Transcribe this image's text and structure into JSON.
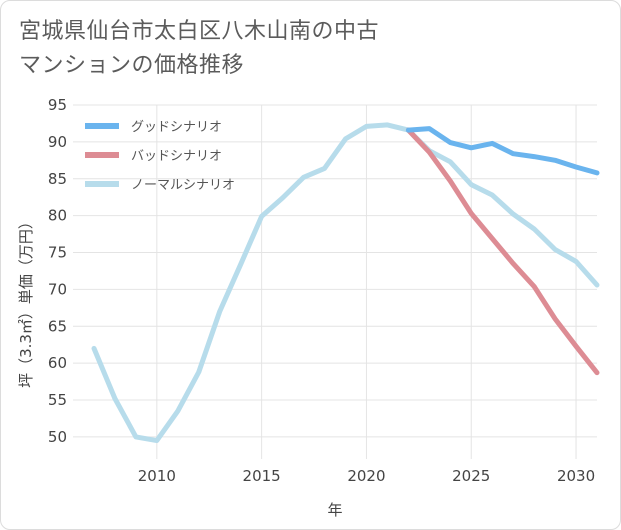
{
  "title": "宮城県仙台市太白区八木山南の中古マンションの価格推移",
  "chart_data": {
    "type": "line",
    "xlabel": "年",
    "ylabel": "坪（3.3㎡）単価（万円）",
    "xlim": [
      2006,
      2031
    ],
    "ylim": [
      47,
      95
    ],
    "xticks": [
      2010,
      2015,
      2020,
      2025,
      2030
    ],
    "yticks": [
      50,
      55,
      60,
      65,
      70,
      75,
      80,
      85,
      90,
      95
    ],
    "grid": true,
    "legend_position": "top-left",
    "series": [
      {
        "name": "グッドシナリオ",
        "color": "#6ab4ee",
        "points": [
          [
            2022,
            91.6
          ],
          [
            2023,
            91.8
          ],
          [
            2024,
            89.9
          ],
          [
            2025,
            89.2
          ],
          [
            2026,
            89.8
          ],
          [
            2027,
            88.4
          ],
          [
            2028,
            88.0
          ],
          [
            2029,
            87.5
          ],
          [
            2030,
            86.6
          ],
          [
            2031,
            85.8
          ]
        ]
      },
      {
        "name": "バッドシナリオ",
        "color": "#dd8c94",
        "points": [
          [
            2022,
            91.6
          ],
          [
            2023,
            88.6
          ],
          [
            2024,
            84.7
          ],
          [
            2025,
            80.3
          ],
          [
            2026,
            76.9
          ],
          [
            2027,
            73.5
          ],
          [
            2028,
            70.4
          ],
          [
            2029,
            66.0
          ],
          [
            2030,
            62.3
          ],
          [
            2031,
            58.7
          ]
        ]
      },
      {
        "name": "ノーマルシナリオ",
        "color": "#b7dceb",
        "points": [
          [
            2007,
            62.0
          ],
          [
            2008,
            55.2
          ],
          [
            2009,
            50.0
          ],
          [
            2010,
            49.5
          ],
          [
            2011,
            53.5
          ],
          [
            2012,
            58.8
          ],
          [
            2013,
            67.0
          ],
          [
            2014,
            73.4
          ],
          [
            2015,
            79.9
          ],
          [
            2016,
            82.4
          ],
          [
            2017,
            85.2
          ],
          [
            2018,
            86.4
          ],
          [
            2019,
            90.4
          ],
          [
            2020,
            92.1
          ],
          [
            2021,
            92.3
          ],
          [
            2022,
            91.6
          ],
          [
            2023,
            88.8
          ],
          [
            2024,
            87.3
          ],
          [
            2025,
            84.2
          ],
          [
            2026,
            82.8
          ],
          [
            2027,
            80.2
          ],
          [
            2028,
            78.2
          ],
          [
            2029,
            75.4
          ],
          [
            2030,
            73.8
          ],
          [
            2031,
            70.6
          ]
        ]
      }
    ]
  }
}
